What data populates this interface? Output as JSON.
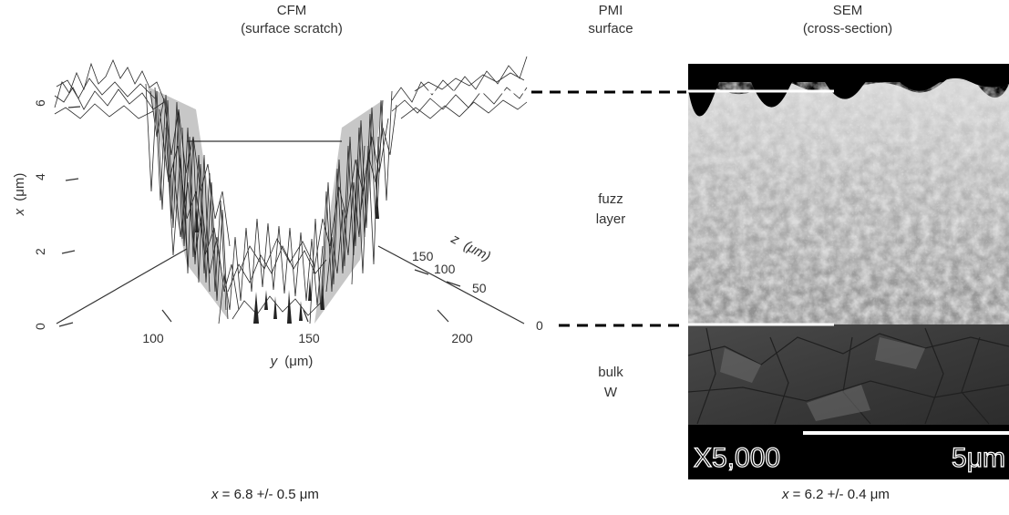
{
  "headers": {
    "cfm": {
      "line1": "CFM",
      "line2": "(surface scratch)"
    },
    "pmi": {
      "line1": "PMI",
      "line2": "surface"
    },
    "sem": {
      "line1": "SEM",
      "line2": "(cross-section)"
    }
  },
  "middle_labels": {
    "fuzz": {
      "line1": "fuzz",
      "line2": "layer"
    },
    "bulk": {
      "line1": "bulk",
      "line2": "W"
    }
  },
  "plot": {
    "x_axis_label_var": "x",
    "x_axis_label_unit": "(μm)",
    "x_ticks": [
      "0",
      "2",
      "4",
      "6"
    ],
    "y_axis_label_var": "y",
    "y_axis_label_unit": "(μm)",
    "y_ticks": [
      "100",
      "150",
      "200"
    ],
    "z_axis_label_var": "z",
    "z_axis_label_unit": "(μm)",
    "z_ticks": [
      "50",
      "100",
      "150"
    ]
  },
  "depth_zero_label": "0",
  "sem_image": {
    "magnification": "X5,000",
    "scale_bar": "5μm"
  },
  "measurements": {
    "cfm": {
      "var": "x",
      "text": " = 6.8 +/- 0.5 μm"
    },
    "sem": {
      "var": "x",
      "text": " = 6.2 +/- 0.4 μm"
    }
  },
  "colors": {
    "mesh": "#2a2a2a",
    "dashed_line": "#000000",
    "sem_marker": "#ffffff"
  }
}
